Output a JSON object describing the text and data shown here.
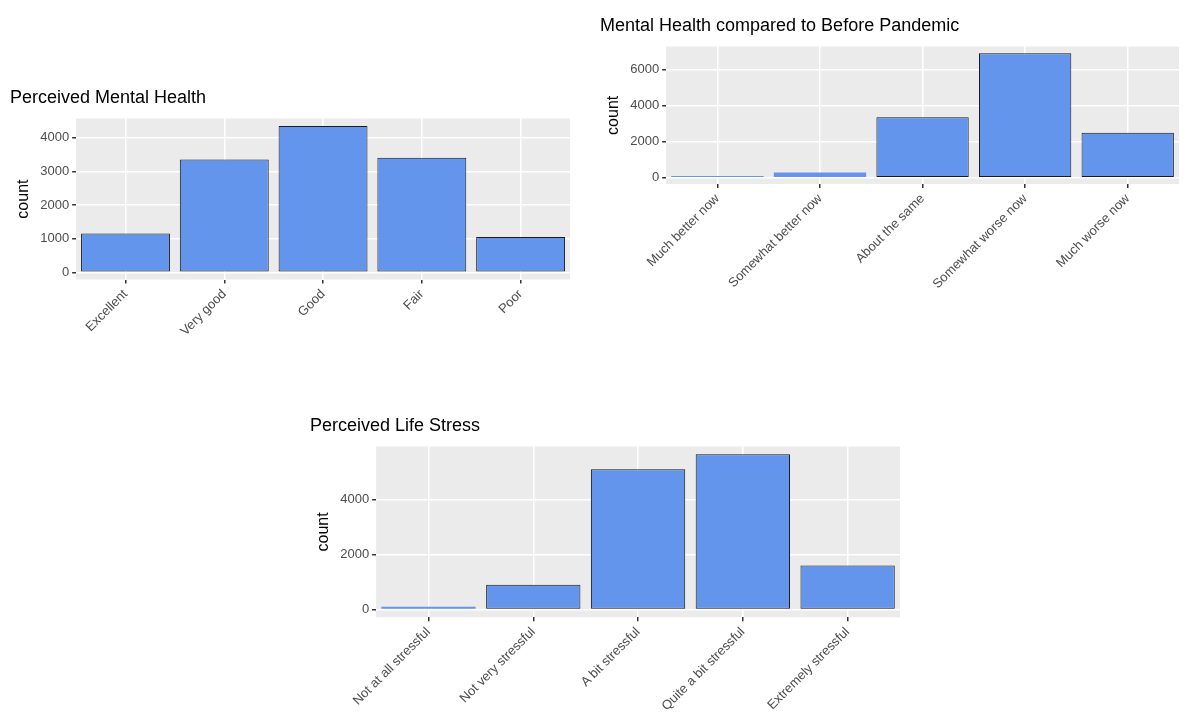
{
  "chart_data": [
    {
      "type": "bar",
      "title": "Perceived Mental Health",
      "ylabel": "count",
      "categories": [
        "Excellent",
        "Very good",
        "Good",
        "Fair",
        "Poor"
      ],
      "values": [
        1150,
        3350,
        4350,
        3400,
        1050
      ],
      "color": "#6495ed",
      "ylim": [
        -217,
        4567
      ],
      "yticks": [
        0,
        1000,
        2000,
        3000,
        4000
      ],
      "grid": true
    },
    {
      "type": "bar",
      "title": "Mental Health compared to Before Pandemic",
      "ylabel": "count",
      "categories": [
        "Much better now",
        "Somewhat better now",
        "About the same",
        "Somewhat worse now",
        "Much worse now"
      ],
      "values": [
        100,
        300,
        3350,
        6900,
        2500
      ],
      "color": "#6495ed",
      "ylim": [
        -346,
        7266
      ],
      "yticks": [
        0,
        2000,
        4000,
        6000
      ],
      "grid": true
    },
    {
      "type": "bar",
      "title": "Perceived Life Stress",
      "ylabel": "count",
      "categories": [
        "Not at all stressful",
        "Not very stressful",
        "A bit stressful",
        "Quite a bit stressful",
        "Extremely stressful"
      ],
      "values": [
        100,
        900,
        5100,
        5650,
        1600
      ],
      "color": "#6495ed",
      "ylim": [
        -282,
        5927
      ],
      "yticks": [
        0,
        2000,
        4000
      ],
      "grid": true
    }
  ]
}
